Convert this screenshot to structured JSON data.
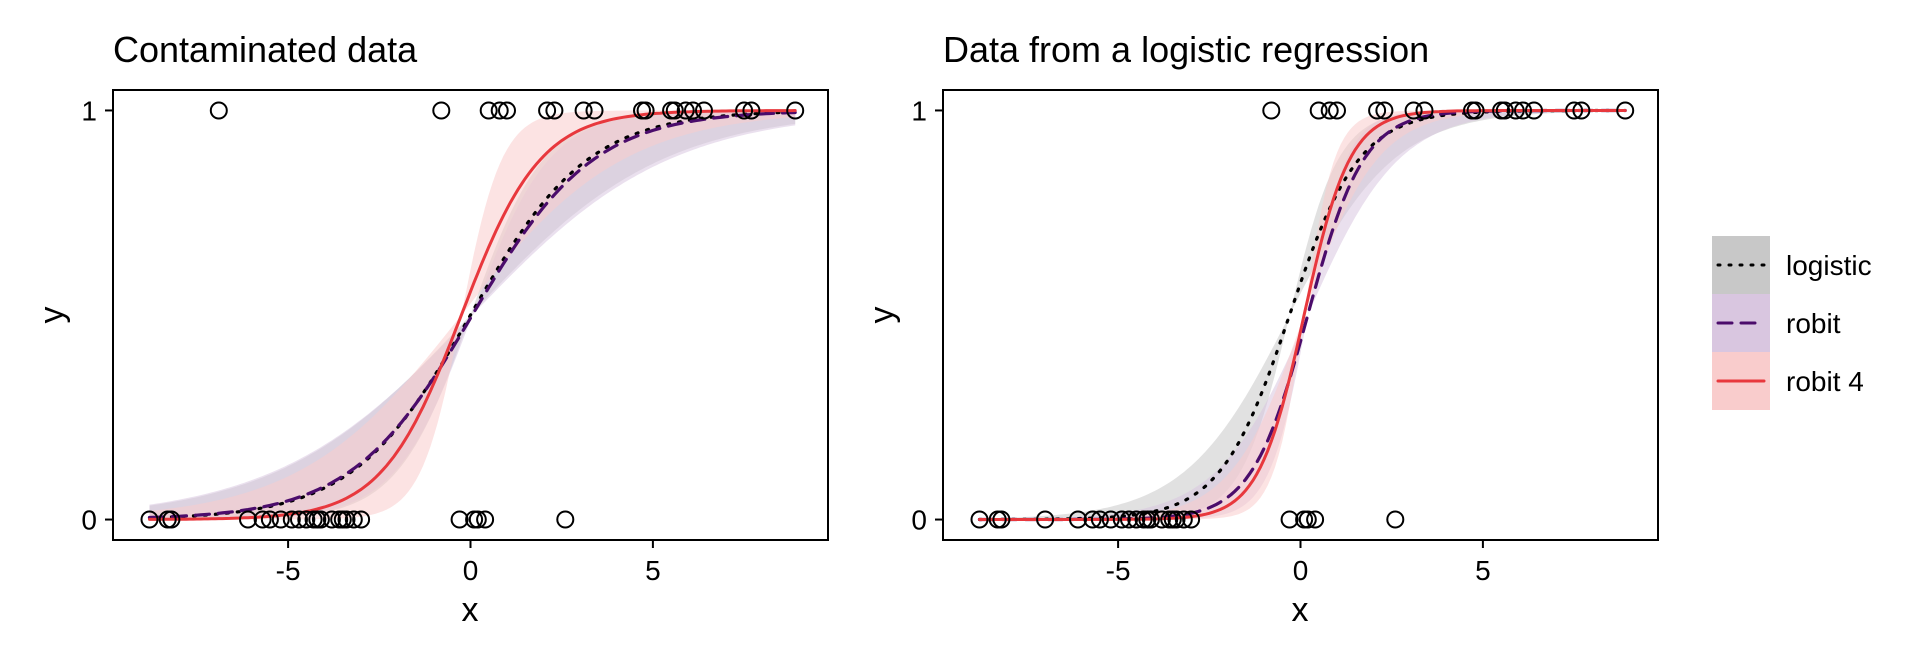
{
  "chart_data": [
    {
      "type": "line",
      "title": "Contaminated data",
      "xlabel": "x",
      "ylabel": "y",
      "xlim": [
        -9.8,
        9.8
      ],
      "ylim": [
        -0.05,
        1.05
      ],
      "xticks": [
        -5,
        0,
        5
      ],
      "xtick_labels": [
        "-5",
        "0",
        "5"
      ],
      "yticks": [
        0,
        1
      ],
      "ytick_labels": [
        "0",
        "1"
      ],
      "grid": false,
      "points": {
        "x": [
          -8.8,
          -8.3,
          -8.2,
          -6.9,
          -6.1,
          -5.7,
          -5.5,
          -5.2,
          -4.9,
          -4.7,
          -4.5,
          -4.3,
          -4.2,
          -4.1,
          -3.8,
          -3.6,
          -3.5,
          -3.4,
          -3.2,
          -3.0,
          -0.8,
          -0.3,
          0.1,
          0.2,
          0.4,
          0.5,
          0.8,
          1.0,
          2.1,
          2.3,
          2.6,
          3.1,
          3.4,
          4.7,
          4.8,
          5.5,
          5.6,
          5.9,
          6.1,
          6.4,
          7.5,
          7.7,
          8.9
        ],
        "y": [
          0,
          0,
          0,
          1,
          0,
          0,
          0,
          0,
          0,
          0,
          0,
          0,
          0,
          0,
          0,
          0,
          0,
          0,
          0,
          0,
          1,
          0,
          0,
          0,
          0,
          1,
          1,
          1,
          1,
          1,
          0,
          1,
          1,
          1,
          1,
          1,
          1,
          1,
          1,
          1,
          1,
          1,
          1
        ]
      },
      "series": [
        {
          "name": "logistic",
          "center": 0.0,
          "slope": 0.62,
          "band_lower_slope": 0.38,
          "band_upper_slope": 1.0,
          "color": "#000000",
          "fill": "#c8c8c8",
          "dash": "dotted"
        },
        {
          "name": "robit",
          "center": 0.05,
          "slope": 0.6,
          "band_lower_slope": 0.37,
          "band_upper_slope": 0.95,
          "color": "#4b0c6b",
          "fill": "#d9c6e0",
          "dash": "dashed"
        },
        {
          "name": "robit 4",
          "center": -0.25,
          "slope": 0.92,
          "band_lower_slope": 0.45,
          "band_upper_slope": 1.8,
          "color": "#e8383d",
          "fill": "#f9cccc",
          "dash": "solid"
        }
      ]
    },
    {
      "type": "line",
      "title": "Data from a logistic regression",
      "xlabel": "x",
      "ylabel": "y",
      "xlim": [
        -9.8,
        9.8
      ],
      "ylim": [
        -0.05,
        1.05
      ],
      "xticks": [
        -5,
        0,
        5
      ],
      "xtick_labels": [
        "-5",
        "0",
        "5"
      ],
      "yticks": [
        0,
        1
      ],
      "ytick_labels": [
        "0",
        "1"
      ],
      "grid": false,
      "points": {
        "x": [
          -8.8,
          -8.3,
          -8.2,
          -7.0,
          -6.1,
          -5.7,
          -5.5,
          -5.2,
          -4.9,
          -4.7,
          -4.5,
          -4.3,
          -4.2,
          -4.1,
          -3.8,
          -3.6,
          -3.5,
          -3.4,
          -3.2,
          -3.0,
          -0.8,
          -0.3,
          0.1,
          0.2,
          0.4,
          0.5,
          0.8,
          1.0,
          2.1,
          2.3,
          2.6,
          3.1,
          3.4,
          4.7,
          4.8,
          5.5,
          5.6,
          5.9,
          6.1,
          6.4,
          7.5,
          7.7,
          8.9
        ],
        "y": [
          0,
          0,
          0,
          0,
          0,
          0,
          0,
          0,
          0,
          0,
          0,
          0,
          0,
          0,
          0,
          0,
          0,
          0,
          0,
          0,
          1,
          0,
          0,
          0,
          0,
          1,
          1,
          1,
          1,
          1,
          0,
          1,
          1,
          1,
          1,
          1,
          1,
          1,
          1,
          1,
          1,
          1,
          1
        ]
      },
      "series": [
        {
          "name": "logistic",
          "center": -0.3,
          "slope": 1.05,
          "band_lower_slope": 0.7,
          "band_upper_slope": 1.5,
          "color": "#000000",
          "fill": "#c8c8c8",
          "dash": "dotted"
        },
        {
          "name": "robit",
          "center": 0.2,
          "slope": 1.3,
          "band_lower_slope": 0.8,
          "band_upper_slope": 1.9,
          "color": "#4b0c6b",
          "fill": "#d9c6e0",
          "dash": "dashed"
        },
        {
          "name": "robit 4",
          "center": 0.1,
          "slope": 1.6,
          "band_lower_slope": 1.0,
          "band_upper_slope": 2.4,
          "color": "#e8383d",
          "fill": "#f9cccc",
          "dash": "solid"
        }
      ]
    }
  ],
  "legend": {
    "placement": "right",
    "entries": [
      {
        "label": "logistic",
        "color": "#000000",
        "fill": "#c8c8c8",
        "dash": "dotted"
      },
      {
        "label": "robit",
        "color": "#4b0c6b",
        "fill": "#d9c6e0",
        "dash": "dashed"
      },
      {
        "label": "robit 4",
        "color": "#e8383d",
        "fill": "#f9cccc",
        "dash": "solid"
      }
    ]
  }
}
